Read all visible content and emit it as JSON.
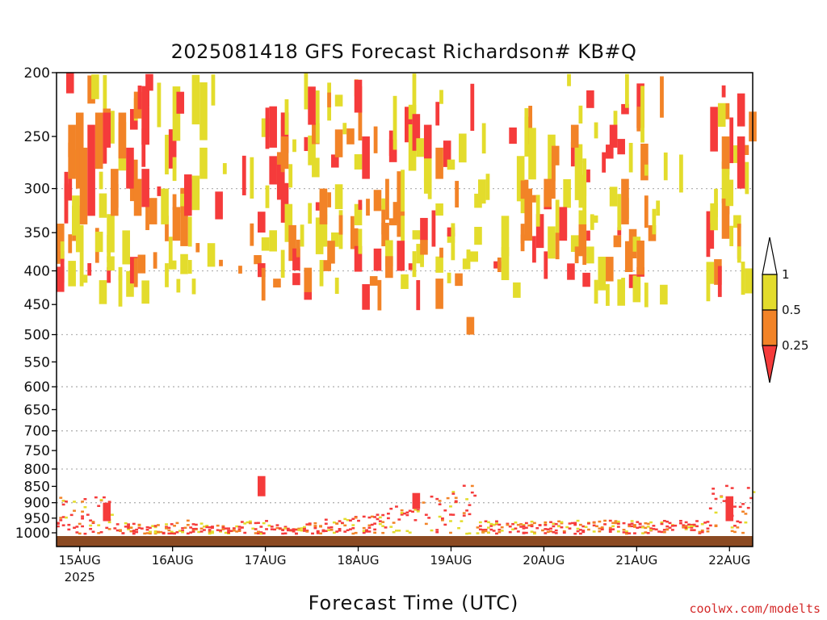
{
  "title": "2025081418 GFS Forecast Richardson# KB#Q",
  "credit": "coolwx.com/modelts",
  "colors": {
    "ri_lt_0_25": "#f53b3b",
    "ri_0_25_0_5": "#f28327",
    "ri_0_5_1": "#e3dc2c",
    "ground": "#8b4a22",
    "frame": "#000000",
    "grid": "#b4b4b4"
  },
  "chart_data": {
    "type": "heatmap",
    "title": "2025081418 GFS Forecast Richardson# KB#Q",
    "xlabel": "Forecast Time (UTC)",
    "ylabel": "",
    "y_scale": "log-pressure",
    "y_inverted": true,
    "y_ticks": [
      200,
      250,
      300,
      350,
      400,
      450,
      500,
      550,
      600,
      650,
      700,
      750,
      800,
      850,
      900,
      950,
      1000
    ],
    "y_gridlines": [
      300,
      400,
      500,
      600,
      700,
      800,
      900
    ],
    "x_ticks": [
      {
        "label": "15AUG",
        "sub": "2025",
        "hour": 6
      },
      {
        "label": "16AUG",
        "sub": "",
        "hour": 30
      },
      {
        "label": "17AUG",
        "sub": "",
        "hour": 54
      },
      {
        "label": "18AUG",
        "sub": "",
        "hour": 78
      },
      {
        "label": "19AUG",
        "sub": "",
        "hour": 102
      },
      {
        "label": "20AUG",
        "sub": "",
        "hour": 126
      },
      {
        "label": "21AUG",
        "sub": "",
        "hour": 150
      },
      {
        "label": "22AUG",
        "sub": "",
        "hour": 174
      }
    ],
    "x_range_hours": [
      0,
      180
    ],
    "legend": {
      "position": "right",
      "labels": [
        "1",
        "0.5",
        "0.25"
      ],
      "bins": [
        "ri_0_5_1",
        "ri_0_25_0_5",
        "ri_lt_0_25"
      ]
    },
    "cells": [
      {
        "t": 2.5,
        "p1": 200,
        "p2": 215,
        "c": 2
      },
      {
        "t": 3,
        "p1": 240,
        "p2": 290,
        "c": 1
      },
      {
        "t": 5,
        "p1": 230,
        "p2": 300,
        "c": 1
      },
      {
        "t": 6,
        "p1": 260,
        "p2": 340,
        "c": 1
      },
      {
        "t": 8,
        "p1": 240,
        "p2": 330,
        "c": 2
      },
      {
        "t": 10,
        "p1": 230,
        "p2": 280,
        "c": 1
      },
      {
        "t": 12,
        "p1": 230,
        "p2": 260,
        "c": 2
      },
      {
        "t": 14,
        "p1": 280,
        "p2": 330,
        "c": 1
      },
      {
        "t": 16,
        "p1": 230,
        "p2": 270,
        "c": 1
      },
      {
        "t": 18,
        "p1": 260,
        "p2": 300,
        "c": 2
      },
      {
        "t": 20,
        "p1": 290,
        "p2": 330,
        "c": 1
      },
      {
        "t": 22,
        "p1": 280,
        "p2": 320,
        "c": 2
      },
      {
        "t": 24,
        "p1": 310,
        "p2": 340,
        "c": 1
      },
      {
        "t": 27,
        "p1": 300,
        "p2": 340,
        "c": 0
      },
      {
        "t": 30,
        "p1": 320,
        "p2": 360,
        "c": 1
      },
      {
        "t": 33,
        "p1": 290,
        "p2": 330,
        "c": 2
      },
      {
        "t": 37,
        "p1": 260,
        "p2": 290,
        "c": 0
      },
      {
        "t": 55,
        "p1": 225,
        "p2": 260,
        "c": 2
      },
      {
        "t": 58,
        "p1": 250,
        "p2": 280,
        "c": 1
      },
      {
        "t": 65,
        "p1": 210,
        "p2": 240,
        "c": 2
      },
      {
        "t": 68,
        "p1": 300,
        "p2": 340,
        "c": 1
      },
      {
        "t": 70,
        "p1": 360,
        "p2": 390,
        "c": 1
      },
      {
        "t": 77,
        "p1": 205,
        "p2": 230,
        "c": 2
      },
      {
        "t": 79,
        "p1": 250,
        "p2": 290,
        "c": 2
      },
      {
        "t": 82,
        "p1": 370,
        "p2": 400,
        "c": 2
      },
      {
        "t": 85,
        "p1": 380,
        "p2": 410,
        "c": 1
      },
      {
        "t": 88,
        "p1": 360,
        "p2": 400,
        "c": 2
      },
      {
        "t": 95,
        "p1": 240,
        "p2": 270,
        "c": 2
      },
      {
        "t": 98,
        "p1": 260,
        "p2": 290,
        "c": 1
      },
      {
        "t": 106,
        "p1": 470,
        "p2": 500,
        "c": 1
      },
      {
        "t": 115,
        "p1": 330,
        "p2": 380,
        "c": 0
      },
      {
        "t": 121,
        "p1": 300,
        "p2": 360,
        "c": 1
      },
      {
        "t": 126,
        "p1": 290,
        "p2": 320,
        "c": 1
      },
      {
        "t": 130,
        "p1": 320,
        "p2": 360,
        "c": 2
      },
      {
        "t": 133,
        "p1": 240,
        "p2": 260,
        "c": 1
      },
      {
        "t": 135,
        "p1": 340,
        "p2": 380,
        "c": 1
      },
      {
        "t": 143,
        "p1": 240,
        "p2": 260,
        "c": 2
      },
      {
        "t": 146,
        "p1": 290,
        "p2": 340,
        "c": 1
      },
      {
        "t": 156,
        "p1": 420,
        "p2": 450,
        "c": 0
      },
      {
        "t": 172,
        "p1": 250,
        "p2": 280,
        "c": 1
      },
      {
        "t": 176,
        "p1": 250,
        "p2": 300,
        "c": 2
      },
      {
        "t": 173,
        "p1": 880,
        "p2": 960,
        "c": 2
      },
      {
        "t": 12,
        "p1": 900,
        "p2": 960,
        "c": 2
      },
      {
        "t": 52,
        "p1": 820,
        "p2": 880,
        "c": 2
      },
      {
        "t": 92,
        "p1": 870,
        "p2": 920,
        "c": 2
      }
    ]
  }
}
